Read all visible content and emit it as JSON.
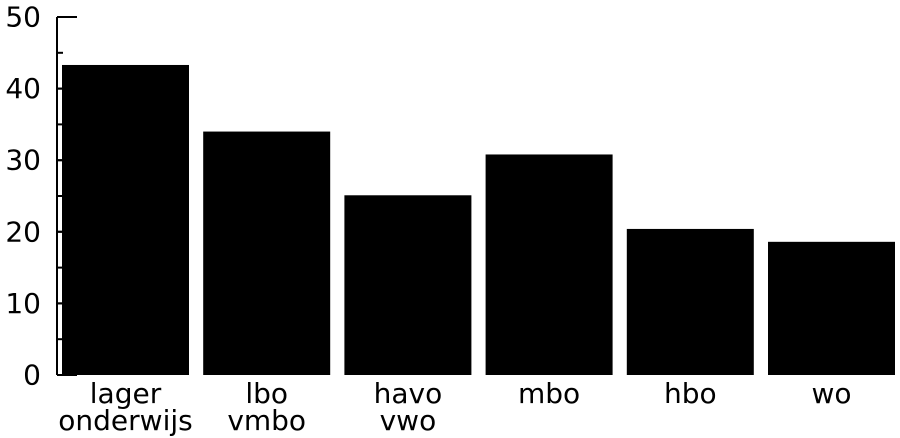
{
  "chart_data": {
    "type": "bar",
    "title": "",
    "xlabel": "",
    "ylabel": "",
    "ylim": [
      0,
      50
    ],
    "y_ticks": [
      "0",
      "10",
      "20",
      "30",
      "40",
      "50"
    ],
    "y_minor_tick_step": 5,
    "categories": [
      [
        "lager",
        "onderwijs"
      ],
      [
        "lbo",
        "vmbo"
      ],
      [
        "havo",
        "vwo"
      ],
      [
        "mbo"
      ],
      [
        "hbo"
      ],
      [
        "wo"
      ]
    ],
    "values": [
      43.3,
      34.0,
      25.1,
      30.8,
      20.4,
      18.6
    ],
    "grid": false,
    "legend": "none",
    "bar_color": "#000000",
    "axis_color": "#000000",
    "background": "#ffffff"
  }
}
